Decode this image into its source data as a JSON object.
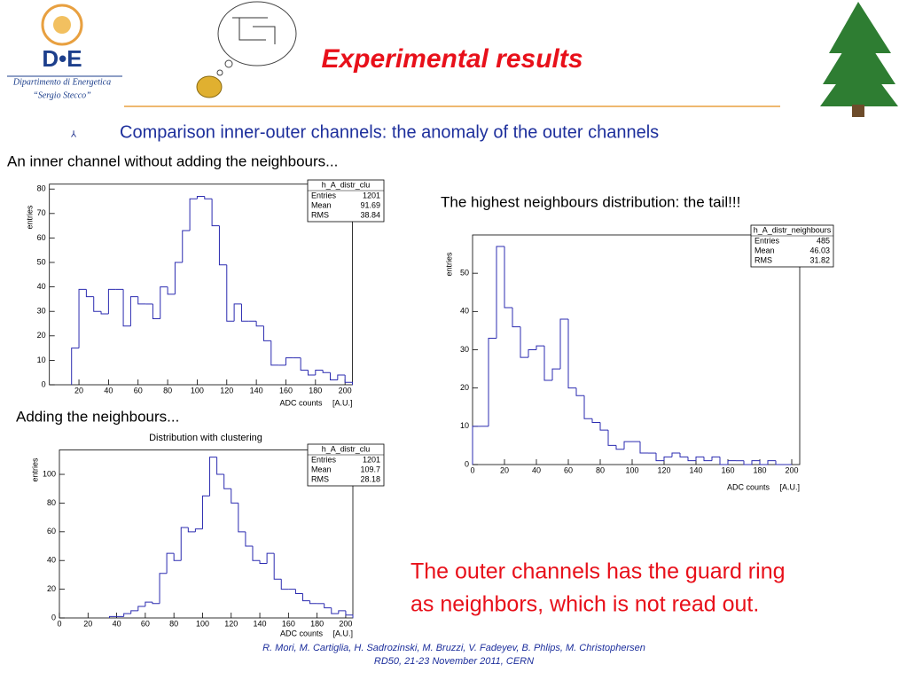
{
  "logo": {
    "mark": "D•E",
    "line1": "Dipartimento di Energetica",
    "line2": "“Sergio Stecco”"
  },
  "title": "Experimental results",
  "bullet": "Comparison inner-outer channels: the anomaly of the outer channels",
  "captions": [
    "An inner channel without adding the neighbours...",
    "The highest neighbours distribution: the tail!!!",
    "Adding the neighbours..."
  ],
  "conclusion": [
    "The outer channels has the guard ring",
    "as neighbors, which is not read out."
  ],
  "footer": [
    "R. Mori, M. Cartiglia, H. Sadrozinski, M. Bruzzi, V. Fadeyev, B. Phlips, M. Christophersen",
    "RD50, 21-23 November 2011, CERN"
  ],
  "chart_data": [
    {
      "type": "histogram",
      "color": "#2b2bb0",
      "y_label": "entries",
      "x_label": "ADC counts",
      "x_unit": "[A.U.]",
      "stats": {
        "name": "h_A_distr_clu",
        "rows": [
          [
            "Entries",
            1201
          ],
          [
            "Mean",
            91.69
          ],
          [
            "RMS",
            38.84
          ]
        ]
      },
      "bins": [
        15,
        20,
        25,
        30,
        35,
        40,
        45,
        50,
        55,
        60,
        65,
        70,
        75,
        80,
        85,
        90,
        95,
        100,
        105,
        110,
        115,
        120,
        125,
        130,
        135,
        140,
        145,
        150,
        155,
        160,
        165,
        170,
        175,
        180,
        185,
        190,
        195,
        200,
        205
      ],
      "values": [
        15,
        39,
        36,
        30,
        29,
        39,
        39,
        24,
        36,
        33,
        33,
        27,
        40,
        37,
        50,
        63,
        76,
        77,
        76,
        65,
        49,
        26,
        33,
        26,
        26,
        24,
        18,
        8,
        8,
        11,
        11,
        6,
        4,
        6,
        5,
        2,
        4,
        1
      ],
      "xlim": [
        0,
        205
      ],
      "ylim": [
        0,
        82
      ],
      "xticks": [
        20,
        40,
        60,
        80,
        100,
        120,
        140,
        160,
        180,
        200
      ],
      "yticks": [
        0,
        10,
        20,
        30,
        40,
        50,
        60,
        70,
        80
      ]
    },
    {
      "type": "histogram",
      "color": "#2b2bb0",
      "y_label": "entries",
      "x_label": "ADC counts",
      "x_unit": "[A.U.]",
      "stats": {
        "name": "h_A_distr_neighbours",
        "rows": [
          [
            "Entries",
            485
          ],
          [
            "Mean",
            46.03
          ],
          [
            "RMS",
            31.82
          ]
        ]
      },
      "bins": [
        0,
        5,
        10,
        15,
        20,
        25,
        30,
        35,
        40,
        45,
        50,
        55,
        60,
        65,
        70,
        75,
        80,
        85,
        90,
        95,
        100,
        105,
        110,
        115,
        120,
        125,
        130,
        135,
        140,
        145,
        150,
        155,
        160,
        165,
        170,
        175,
        180,
        185,
        190,
        195,
        200
      ],
      "values": [
        10,
        10,
        33,
        57,
        41,
        36,
        28,
        30,
        31,
        22,
        25,
        38,
        20,
        18,
        12,
        11,
        9,
        5,
        4,
        6,
        6,
        3,
        3,
        1,
        2,
        3,
        2,
        1,
        2,
        1,
        2,
        0,
        1,
        1,
        0,
        1,
        0,
        1,
        0,
        0
      ],
      "xlim": [
        0,
        205
      ],
      "ylim": [
        0,
        60
      ],
      "xticks": [
        0,
        20,
        40,
        60,
        80,
        100,
        120,
        140,
        160,
        180,
        200
      ],
      "yticks": [
        0,
        10,
        20,
        30,
        40,
        50
      ]
    },
    {
      "type": "histogram",
      "title": "Distribution with clustering",
      "color": "#2b2bb0",
      "y_label": "entries",
      "x_label": "ADC counts",
      "x_unit": "[A.U.]",
      "stats": {
        "name": "h_A_distr_clu",
        "rows": [
          [
            "Entries",
            1201
          ],
          [
            "Mean",
            109.7
          ],
          [
            "RMS",
            28.18
          ]
        ]
      },
      "bins": [
        35,
        40,
        45,
        50,
        55,
        60,
        65,
        70,
        75,
        80,
        85,
        90,
        95,
        100,
        105,
        110,
        115,
        120,
        125,
        130,
        135,
        140,
        145,
        150,
        155,
        160,
        165,
        170,
        175,
        180,
        185,
        190,
        195,
        200,
        205
      ],
      "values": [
        1,
        1,
        3,
        5,
        8,
        11,
        10,
        31,
        45,
        40,
        63,
        60,
        62,
        85,
        112,
        100,
        90,
        80,
        60,
        50,
        40,
        38,
        45,
        27,
        20,
        20,
        17,
        12,
        10,
        10,
        7,
        3,
        5,
        2
      ],
      "xlim": [
        0,
        205
      ],
      "ylim": [
        0,
        117
      ],
      "xticks": [
        0,
        20,
        40,
        60,
        80,
        100,
        120,
        140,
        160,
        180,
        200
      ],
      "yticks": [
        0,
        20,
        40,
        60,
        80,
        100
      ]
    }
  ]
}
